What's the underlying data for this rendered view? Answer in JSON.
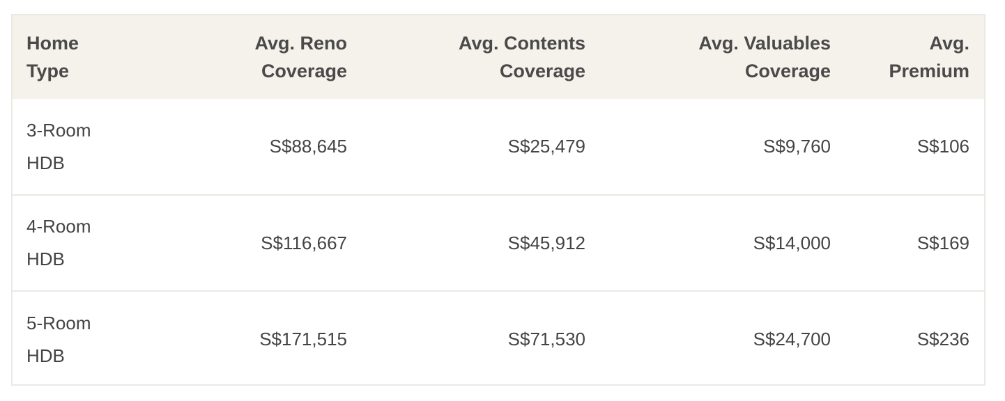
{
  "table": {
    "headers": [
      {
        "line1": "Home",
        "line2": "Type"
      },
      {
        "line1": "Avg. Reno",
        "line2": "Coverage"
      },
      {
        "line1": "Avg. Contents",
        "line2": "Coverage"
      },
      {
        "line1": "Avg. Valuables",
        "line2": "Coverage"
      },
      {
        "line1": "Avg.",
        "line2": "Premium"
      }
    ],
    "rows": [
      {
        "home_type_line1": "3-Room",
        "home_type_line2": "HDB",
        "reno": "S$88,645",
        "contents": "S$25,479",
        "valuables": "S$9,760",
        "premium": "S$106"
      },
      {
        "home_type_line1": "4-Room",
        "home_type_line2": "HDB",
        "reno": "S$116,667",
        "contents": "S$45,912",
        "valuables": "S$14,000",
        "premium": "S$169"
      },
      {
        "home_type_line1": "5-Room",
        "home_type_line2": "HDB",
        "reno": "S$171,515",
        "contents": "S$71,530",
        "valuables": "S$24,700",
        "premium": "S$236"
      }
    ]
  },
  "colors": {
    "header_background": "#f5f2eb",
    "border": "#ebe9e4",
    "text": "#444444"
  }
}
